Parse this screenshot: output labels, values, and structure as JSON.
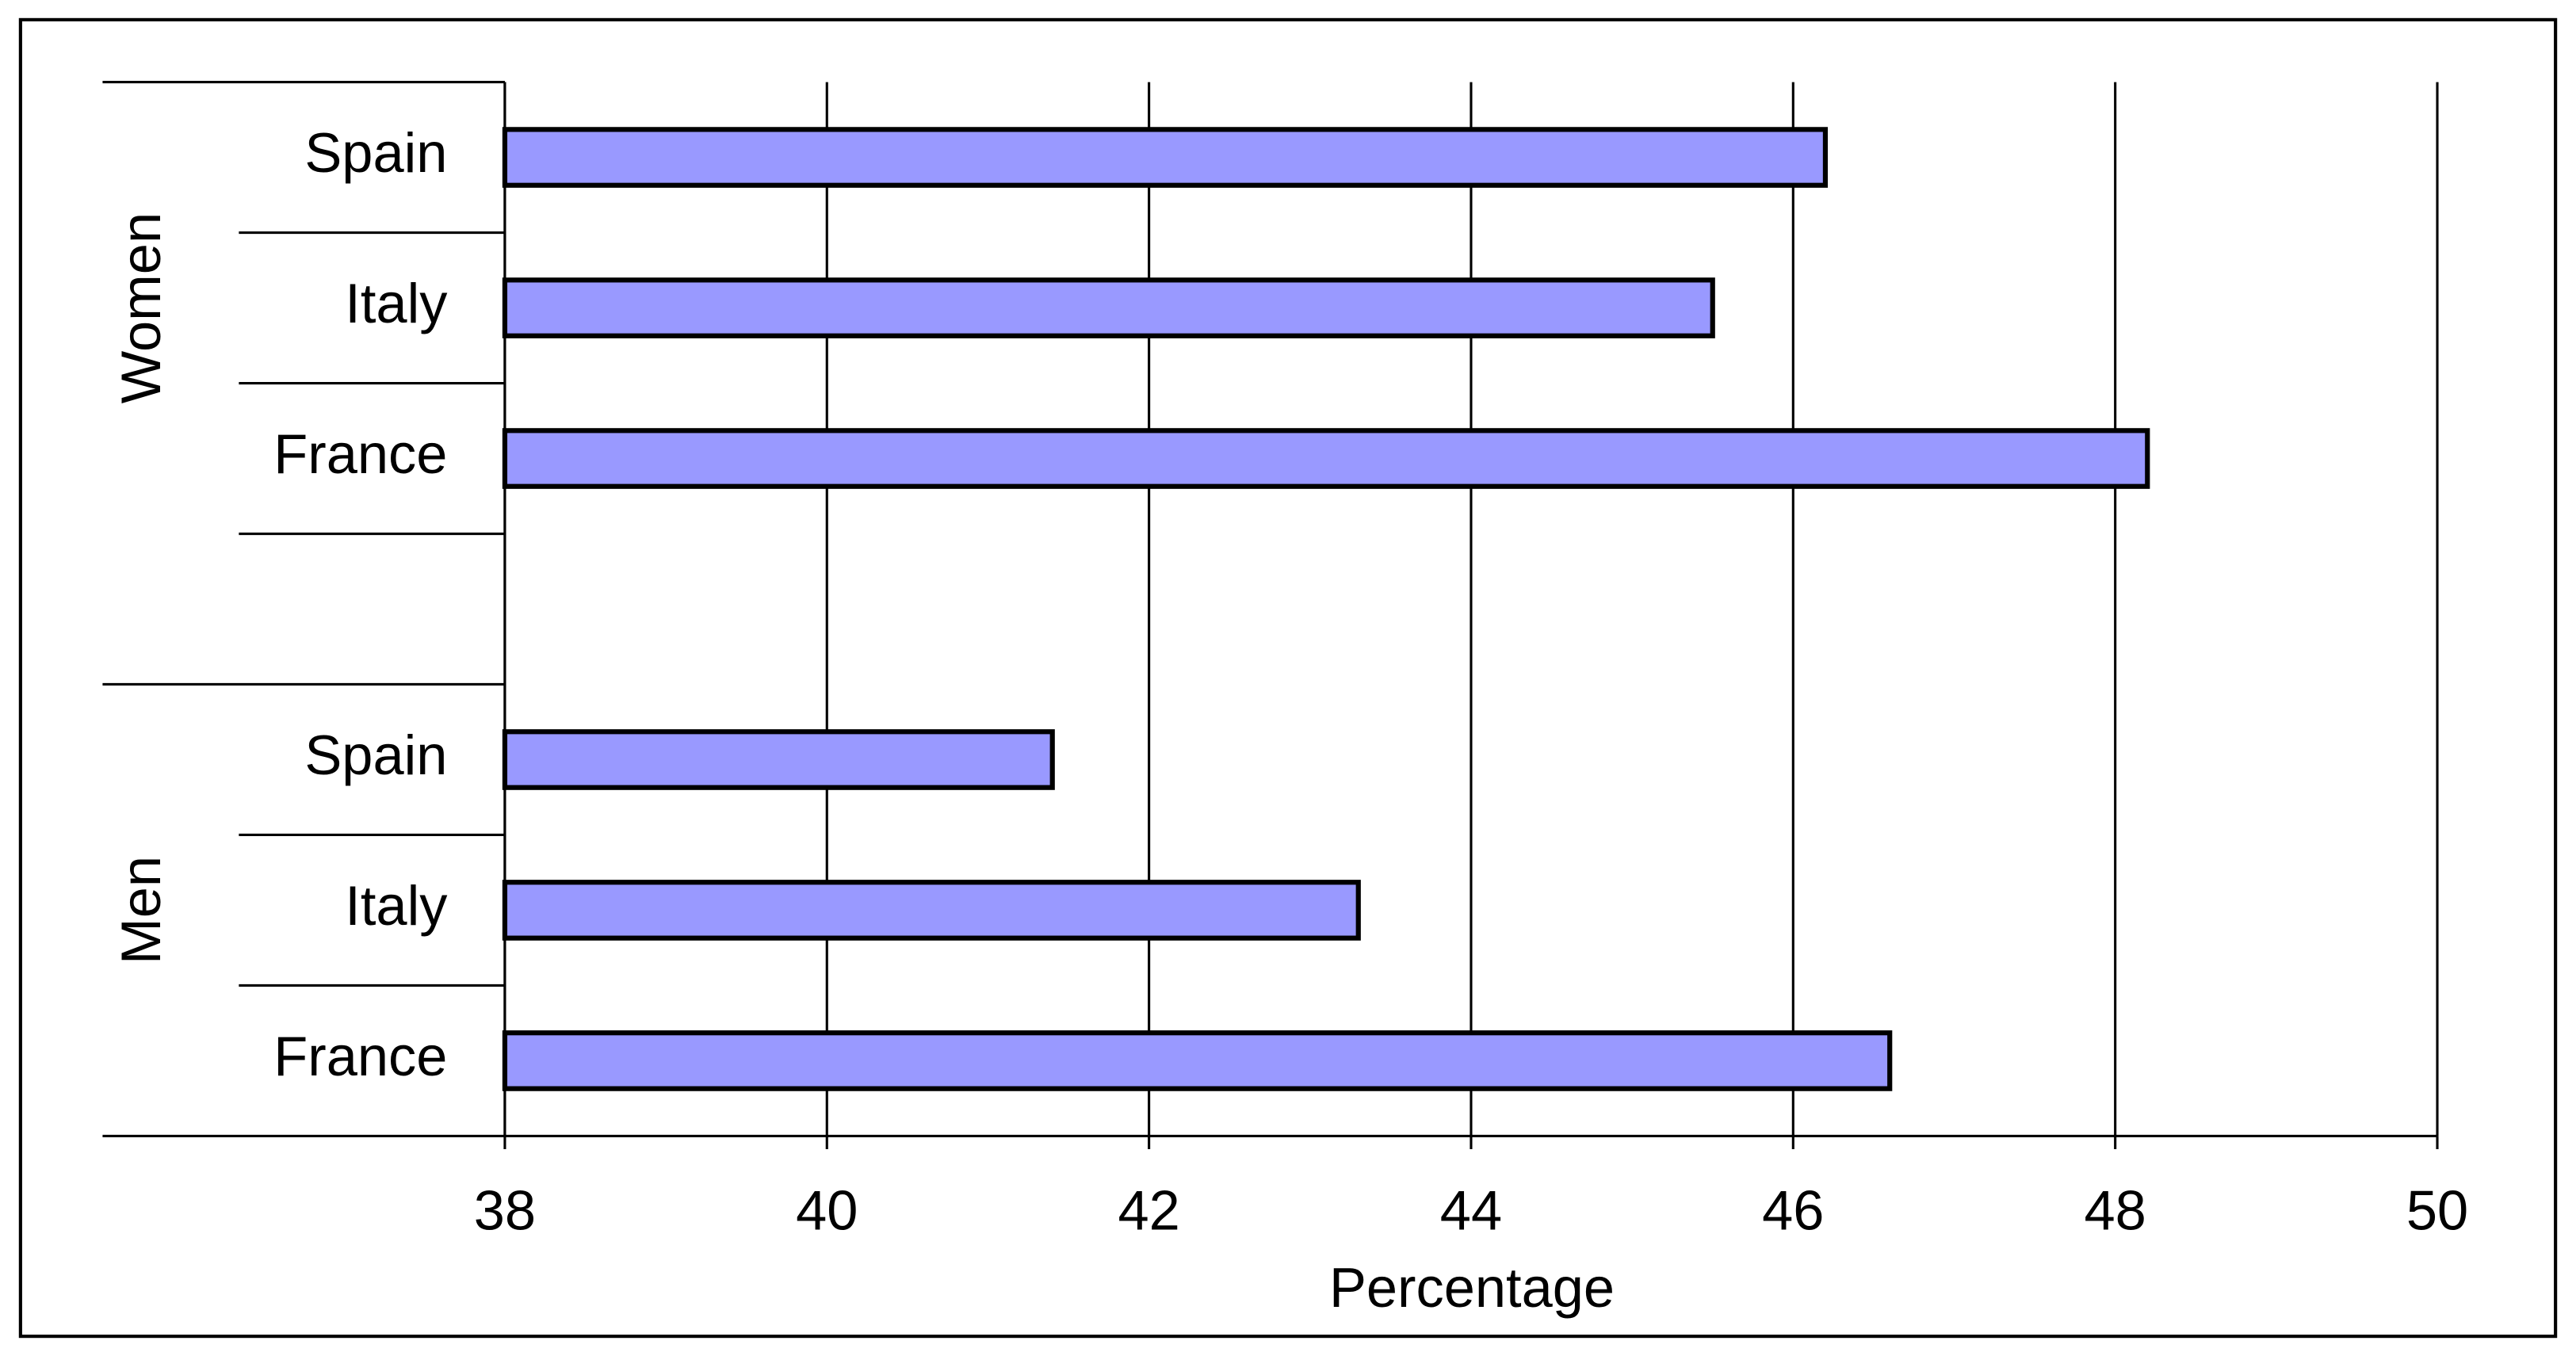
{
  "chart_data": {
    "type": "bar",
    "orientation": "horizontal",
    "x_label": "Percentage",
    "groups": [
      {
        "name": "Women",
        "categories": [
          "Spain",
          "Italy",
          "France"
        ],
        "values": [
          46.2,
          45.5,
          48.2
        ]
      },
      {
        "name": "Men",
        "categories": [
          "Spain",
          "Italy",
          "France"
        ],
        "values": [
          41.4,
          43.3,
          46.6
        ]
      }
    ],
    "color": "#9999ff",
    "xlim": [
      38,
      50
    ],
    "xticks": [
      38,
      40,
      42,
      44,
      46,
      48,
      50
    ],
    "grid": true
  }
}
